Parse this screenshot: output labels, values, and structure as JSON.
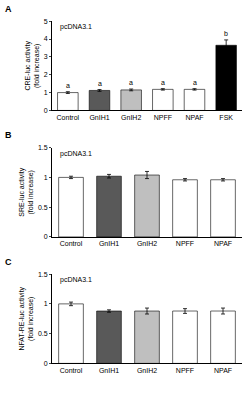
{
  "chart_data": [
    {
      "type": "bar",
      "panel_label": "A",
      "title": "pcDNA3.1",
      "y_label": "CRE-luc activity\n(fold increase)",
      "categories": [
        "Control",
        "GnIH1",
        "GnIH2",
        "NPFF",
        "NPAF",
        "FSK"
      ],
      "values": [
        1.0,
        1.12,
        1.15,
        1.18,
        1.18,
        3.65
      ],
      "errors": [
        0.05,
        0.05,
        0.05,
        0.04,
        0.04,
        0.3
      ],
      "colors": [
        "#ffffff",
        "#595959",
        "#bfbfbf",
        "#ffffff",
        "#ffffff",
        "#000000"
      ],
      "ylim": [
        0,
        5
      ],
      "yticks": [
        0,
        1,
        2,
        3,
        4,
        5
      ],
      "annotations": [
        {
          "category": "Control",
          "text": "a"
        },
        {
          "category": "GnIH1",
          "text": "a"
        },
        {
          "category": "GnIH2",
          "text": "a"
        },
        {
          "category": "NPFF",
          "text": "a"
        },
        {
          "category": "NPAF",
          "text": "a"
        },
        {
          "category": "FSK",
          "text": "b"
        }
      ]
    },
    {
      "type": "bar",
      "panel_label": "B",
      "title": "pcDNA3.1",
      "y_label": "SRE-luc activity\n(fold increase)",
      "categories": [
        "Control",
        "GnIH1",
        "GnIH2",
        "NPFF",
        "NPAF"
      ],
      "values": [
        1.0,
        1.02,
        1.04,
        0.96,
        0.96
      ],
      "errors": [
        0.02,
        0.03,
        0.06,
        0.02,
        0.02
      ],
      "colors": [
        "#ffffff",
        "#595959",
        "#bfbfbf",
        "#ffffff",
        "#ffffff"
      ],
      "ylim": [
        0,
        1.5
      ],
      "yticks": [
        0,
        0.5,
        1,
        1.5
      ]
    },
    {
      "type": "bar",
      "panel_label": "C",
      "title": "pcDNA3.1",
      "y_label": "NFAT-RE-luc activity\n(fold increase)",
      "categories": [
        "Control",
        "GnIH1",
        "GnIH2",
        "NPFF",
        "NPAF"
      ],
      "values": [
        1.0,
        0.88,
        0.88,
        0.88,
        0.88
      ],
      "errors": [
        0.03,
        0.02,
        0.05,
        0.04,
        0.05
      ],
      "colors": [
        "#ffffff",
        "#595959",
        "#bfbfbf",
        "#ffffff",
        "#ffffff"
      ],
      "ylim": [
        0,
        1.5
      ],
      "yticks": [
        0,
        0.5,
        1,
        1.5
      ]
    }
  ]
}
